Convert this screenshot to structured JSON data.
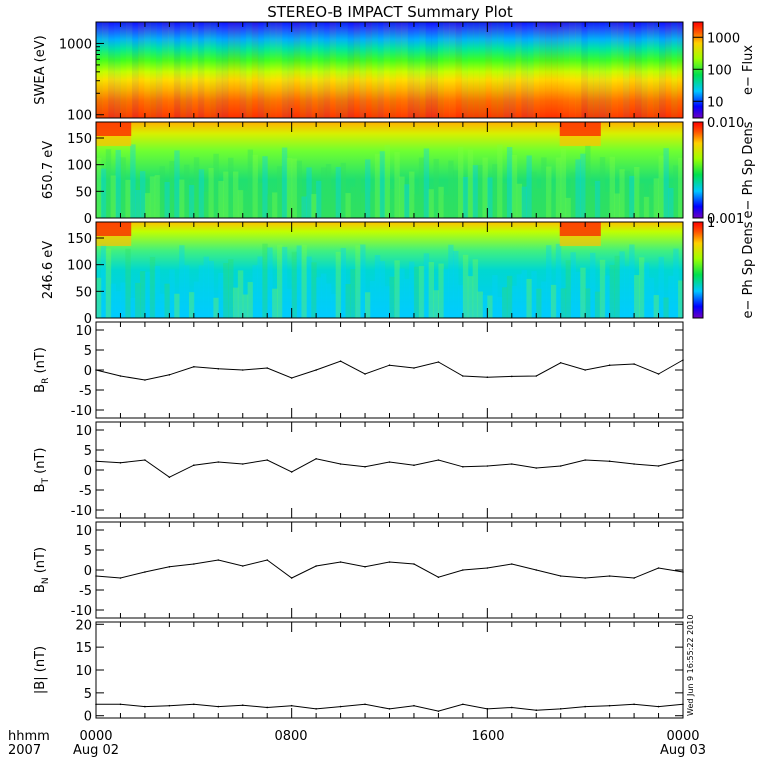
{
  "chart_data": {
    "title": "STEREO-B IMPACT Summary Plot",
    "footer": {
      "row1": [
        "hhmm",
        "0000",
        "0800",
        "1600",
        "0000"
      ],
      "row2": [
        "2007",
        "Aug 02",
        "Aug 03"
      ]
    },
    "timestamp": "Wed Jun  9 16:55:22 2010",
    "panels": [
      {
        "type": "heatmap",
        "ylabel": "SWEA (eV)",
        "yscale": "log",
        "ylim": [
          90,
          2000
        ],
        "yticks": [
          "100",
          "1000"
        ],
        "colorbar": {
          "label": "e− Flux",
          "scale": "log",
          "range": [
            3,
            3000
          ],
          "ticks": [
            "10",
            "100",
            "1000"
          ]
        }
      },
      {
        "type": "heatmap",
        "ylabel": "650.7 eV",
        "ylim": [
          0,
          180
        ],
        "yticks": [
          "0",
          "50",
          "100",
          "150"
        ],
        "colorbar": {
          "label": "e− Ph Sp Dens",
          "scale": "log",
          "range": [
            0.001,
            0.01
          ],
          "ticks": [
            "0.001",
            "0.010"
          ]
        }
      },
      {
        "type": "heatmap",
        "ylabel": "246.6 eV",
        "ylim": [
          0,
          180
        ],
        "yticks": [
          "0",
          "50",
          "100",
          "150"
        ],
        "colorbar": {
          "label": "e− Ph Sp Dens",
          "scale": "log",
          "range": [
            0.01,
            1
          ],
          "ticks": [
            "1"
          ]
        }
      },
      {
        "type": "line",
        "ylabel_main": "B",
        "ylabel_sub": "R",
        "ylabel_unit": " (nT)",
        "ylim": [
          -12,
          12
        ],
        "yticks": [
          "-10",
          "-5",
          "0",
          "5",
          "10"
        ],
        "x": [
          0,
          1,
          2,
          3,
          4,
          5,
          6,
          7,
          8,
          9,
          10,
          11,
          12,
          13,
          14,
          15,
          16,
          17,
          18,
          19,
          20,
          21,
          22,
          23,
          24
        ],
        "values": [
          0,
          -1.5,
          -2.5,
          -1.2,
          0.8,
          0.3,
          0,
          0.5,
          -2,
          0,
          2.2,
          -1,
          1.2,
          0.5,
          2,
          -1.5,
          -1.8,
          -1.6,
          -1.5,
          1.8,
          0,
          1.2,
          1.5,
          -1,
          2.5
        ]
      },
      {
        "type": "line",
        "ylabel_main": "B",
        "ylabel_sub": "T",
        "ylabel_unit": " (nT)",
        "ylim": [
          -12,
          12
        ],
        "yticks": [
          "-10",
          "-5",
          "0",
          "5",
          "10"
        ],
        "x": [
          0,
          1,
          2,
          3,
          4,
          5,
          6,
          7,
          8,
          9,
          10,
          11,
          12,
          13,
          14,
          15,
          16,
          17,
          18,
          19,
          20,
          21,
          22,
          23,
          24
        ],
        "values": [
          2.2,
          1.8,
          2.5,
          -1.8,
          1.2,
          2,
          1.5,
          2.5,
          -0.5,
          2.8,
          1.5,
          0.8,
          2,
          1.2,
          2.5,
          0.8,
          1,
          1.5,
          0.5,
          1,
          2.5,
          2.2,
          1.5,
          1,
          2.5
        ]
      },
      {
        "type": "line",
        "ylabel_main": "B",
        "ylabel_sub": "N",
        "ylabel_unit": " (nT)",
        "ylim": [
          -12,
          12
        ],
        "yticks": [
          "-10",
          "-5",
          "0",
          "5",
          "10"
        ],
        "x": [
          0,
          1,
          2,
          3,
          4,
          5,
          6,
          7,
          8,
          9,
          10,
          11,
          12,
          13,
          14,
          15,
          16,
          17,
          18,
          19,
          20,
          21,
          22,
          23,
          24
        ],
        "values": [
          -1.5,
          -2,
          -0.5,
          0.8,
          1.5,
          2.5,
          1,
          2.5,
          -2,
          1,
          2,
          0.8,
          2,
          1.5,
          -1.8,
          0,
          0.5,
          1.5,
          0,
          -1.5,
          -2,
          -1.5,
          -2,
          0.5,
          -0.5
        ]
      },
      {
        "type": "line",
        "ylabel_main": "|B|",
        "ylabel_sub": "",
        "ylabel_unit": " (nT)",
        "ylim": [
          -0.5,
          20.5
        ],
        "yticks": [
          "0",
          "5",
          "10",
          "15",
          "20"
        ],
        "x": [
          0,
          1,
          2,
          3,
          4,
          5,
          6,
          7,
          8,
          9,
          10,
          11,
          12,
          13,
          14,
          15,
          16,
          17,
          18,
          19,
          20,
          21,
          22,
          23,
          24
        ],
        "values": [
          2.5,
          2.5,
          2,
          2.2,
          2.5,
          2,
          2.3,
          1.8,
          2.2,
          1.5,
          2,
          2.5,
          1.5,
          2.2,
          1,
          2.5,
          1.5,
          1.8,
          1.2,
          1.5,
          2,
          2.2,
          2.5,
          2,
          2.5
        ]
      }
    ]
  }
}
